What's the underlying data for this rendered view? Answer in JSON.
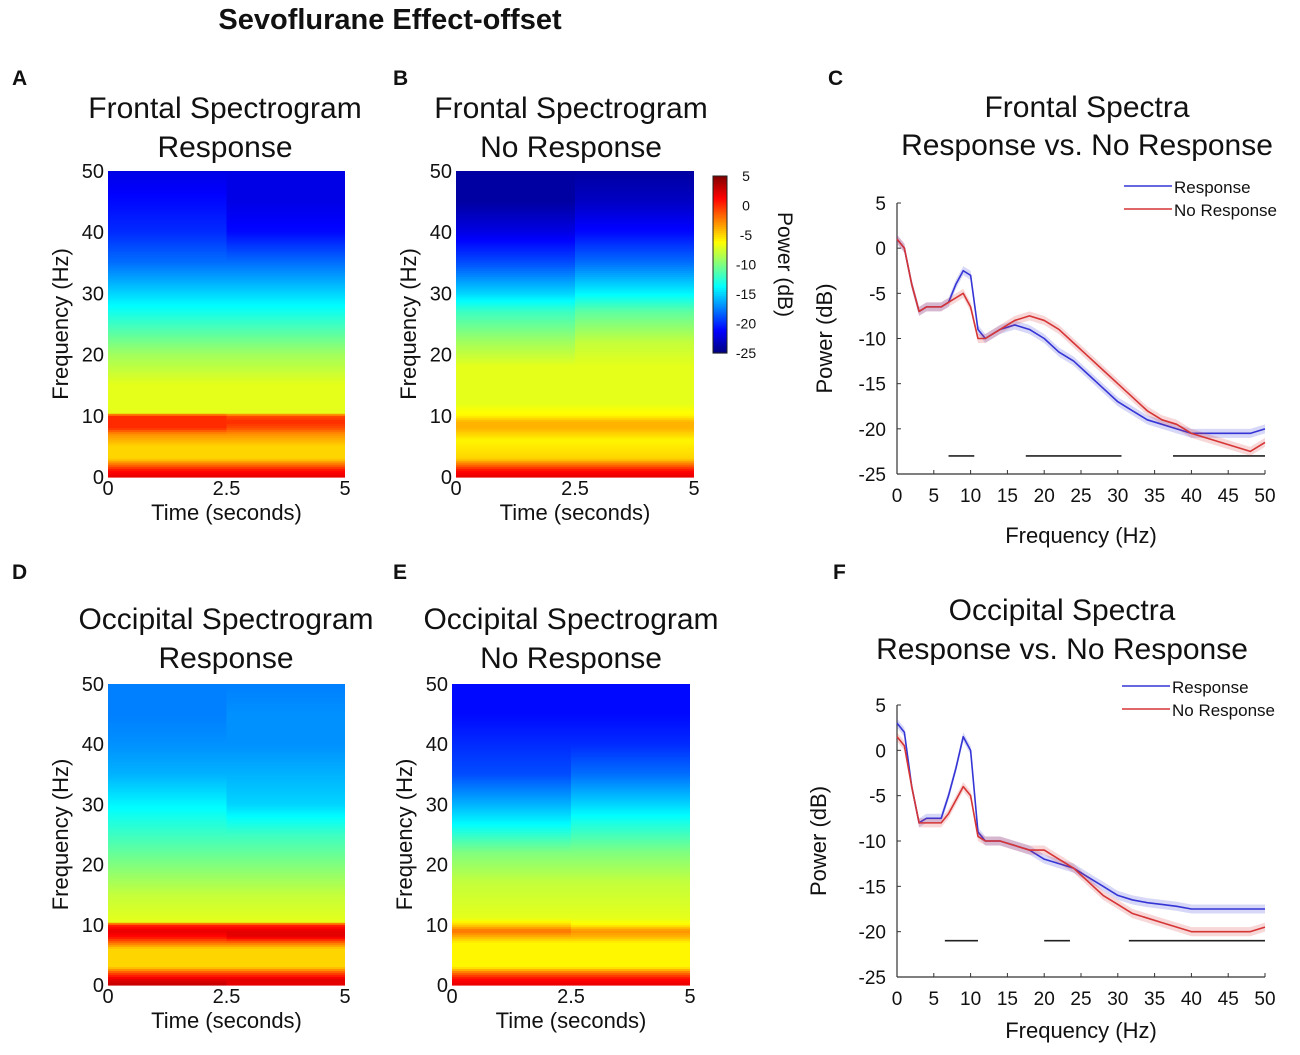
{
  "figure_title": "Sevoflurane Effect-offset",
  "colorbar": {
    "ticks": [
      "5",
      "0",
      "-5",
      "-10",
      "-15",
      "-20",
      "-25"
    ],
    "label": "Power (dB)",
    "range": [
      -25,
      5
    ]
  },
  "chart_data": [
    {
      "id": "A",
      "type": "heatmap",
      "title": [
        "Frontal Spectrogram",
        "Response"
      ],
      "xlabel": "Time (seconds)",
      "ylabel": "Frequency (Hz)",
      "xticks": [
        "0",
        "2.5",
        "5"
      ],
      "yticks": [
        "0",
        "10",
        "20",
        "30",
        "40",
        "50"
      ],
      "xlim": [
        0,
        5
      ],
      "ylim": [
        0,
        50
      ],
      "split_time": 2.5,
      "power_db_by_freq": [
        [
          0,
          2,
          2
        ],
        [
          1,
          1,
          1
        ],
        [
          2,
          -2,
          -2
        ],
        [
          3,
          -5,
          -5
        ],
        [
          5,
          -5,
          -5
        ],
        [
          7,
          -3,
          -3
        ],
        [
          8,
          0,
          -1
        ],
        [
          9,
          0,
          0
        ],
        [
          10,
          0,
          -1
        ],
        [
          10.5,
          -7,
          -7
        ],
        [
          15,
          -7,
          -7
        ],
        [
          20,
          -9,
          -9
        ],
        [
          25,
          -12,
          -12
        ],
        [
          30,
          -15,
          -15
        ],
        [
          35,
          -18,
          -18
        ],
        [
          40,
          -20,
          -21
        ],
        [
          45,
          -21,
          -22
        ],
        [
          50,
          -22,
          -22
        ]
      ]
    },
    {
      "id": "B",
      "type": "heatmap",
      "title": [
        "Frontal Spectrogram",
        "No Response"
      ],
      "xlabel": "Time (seconds)",
      "ylabel": "Frequency (Hz)",
      "xticks": [
        "0",
        "2.5",
        "5"
      ],
      "yticks": [
        "0",
        "10",
        "20",
        "30",
        "40",
        "50"
      ],
      "xlim": [
        0,
        5
      ],
      "ylim": [
        0,
        50
      ],
      "split_time": 2.5,
      "power_db_by_freq": [
        [
          0,
          2,
          2
        ],
        [
          1,
          1,
          1
        ],
        [
          2,
          -2,
          -2
        ],
        [
          3,
          -5,
          -5
        ],
        [
          6,
          -6,
          -6
        ],
        [
          8,
          -4,
          -4
        ],
        [
          9,
          -4,
          -4
        ],
        [
          10,
          -6,
          -6
        ],
        [
          12,
          -7,
          -7
        ],
        [
          18,
          -7,
          -7
        ],
        [
          22,
          -9,
          -8
        ],
        [
          27,
          -12,
          -11
        ],
        [
          30,
          -15,
          -14
        ],
        [
          35,
          -19,
          -18
        ],
        [
          40,
          -22,
          -21
        ],
        [
          45,
          -24,
          -23
        ],
        [
          50,
          -24,
          -24
        ]
      ]
    },
    {
      "id": "C",
      "type": "line",
      "title": [
        "Frontal Spectra",
        "Response vs. No Response"
      ],
      "xlabel": "Frequency (Hz)",
      "ylabel": "Power (dB)",
      "xlim": [
        0,
        50
      ],
      "ylim": [
        -25,
        5
      ],
      "xticks": [
        "0",
        "5",
        "10",
        "15",
        "20",
        "25",
        "30",
        "35",
        "40",
        "45",
        "50"
      ],
      "yticks": [
        "5",
        "0",
        "-5",
        "-10",
        "-15",
        "-20",
        "-25"
      ],
      "legend": [
        "Response",
        "No Response"
      ],
      "x": [
        0,
        1,
        2,
        3,
        4,
        5,
        6,
        7,
        8,
        9,
        10,
        11,
        12,
        14,
        16,
        18,
        20,
        22,
        24,
        26,
        28,
        30,
        32,
        34,
        36,
        38,
        40,
        42,
        44,
        46,
        48,
        50
      ],
      "series": [
        {
          "name": "Response",
          "color": "#3535d6",
          "values": [
            1,
            0,
            -4,
            -7,
            -6.5,
            -6.5,
            -6.5,
            -6,
            -4,
            -2.5,
            -3,
            -9,
            -10,
            -9,
            -8.5,
            -9,
            -10,
            -11.5,
            -12.5,
            -14,
            -15.5,
            -17,
            -18,
            -19,
            -19.5,
            -20,
            -20.5,
            -20.5,
            -20.5,
            -20.5,
            -20.5,
            -20
          ]
        },
        {
          "name": "No Response",
          "color": "#d63535",
          "values": [
            1,
            0,
            -4,
            -7,
            -6.5,
            -6.5,
            -6.5,
            -6,
            -5.5,
            -5,
            -6.5,
            -10,
            -10,
            -9,
            -8,
            -7.5,
            -8,
            -9,
            -10.5,
            -12,
            -13.5,
            -15,
            -16.5,
            -18,
            -19,
            -19.5,
            -20.5,
            -21,
            -21.5,
            -22,
            -22.5,
            -21.5
          ]
        }
      ],
      "significance_bars": [
        [
          7,
          10.5
        ],
        [
          17.5,
          30.5
        ],
        [
          37.5,
          50
        ]
      ],
      "significance_level": -23
    },
    {
      "id": "D",
      "type": "heatmap",
      "title": [
        "Occipital Spectrogram",
        "Response"
      ],
      "xlabel": "Time (seconds)",
      "ylabel": "Frequency (Hz)",
      "xticks": [
        "0",
        "2.5",
        "5"
      ],
      "yticks": [
        "0",
        "10",
        "20",
        "30",
        "40",
        "50"
      ],
      "xlim": [
        0,
        5
      ],
      "ylim": [
        0,
        50
      ],
      "split_time": 2.5,
      "power_db_by_freq": [
        [
          0,
          3,
          2
        ],
        [
          1,
          2,
          2
        ],
        [
          2,
          -1,
          -1
        ],
        [
          3,
          -5,
          -5
        ],
        [
          6,
          -5,
          -5
        ],
        [
          7,
          -2,
          -2
        ],
        [
          8,
          1,
          2
        ],
        [
          9,
          2,
          2
        ],
        [
          10,
          0,
          0
        ],
        [
          10.5,
          -7,
          -7
        ],
        [
          15,
          -8,
          -8
        ],
        [
          20,
          -10,
          -10
        ],
        [
          25,
          -12,
          -12
        ],
        [
          30,
          -14,
          -15
        ],
        [
          35,
          -16,
          -16
        ],
        [
          40,
          -17,
          -17
        ],
        [
          45,
          -17.5,
          -17
        ],
        [
          50,
          -17.5,
          -17.5
        ]
      ]
    },
    {
      "id": "E",
      "type": "heatmap",
      "title": [
        "Occipital Spectrogram",
        "No Response"
      ],
      "xlabel": "Time (seconds)",
      "ylabel": "Frequency (Hz)",
      "xticks": [
        "0",
        "2.5",
        "5"
      ],
      "yticks": [
        "0",
        "10",
        "20",
        "30",
        "40",
        "50"
      ],
      "xlim": [
        0,
        5
      ],
      "ylim": [
        0,
        50
      ],
      "split_time": 2.5,
      "power_db_by_freq": [
        [
          0,
          2,
          2
        ],
        [
          1,
          1,
          1
        ],
        [
          2,
          -2,
          -2
        ],
        [
          3,
          -6,
          -6
        ],
        [
          7,
          -6,
          -6
        ],
        [
          8,
          -4,
          -4
        ],
        [
          9,
          -2,
          -3
        ],
        [
          10,
          -5,
          -6
        ],
        [
          11,
          -7,
          -7
        ],
        [
          17,
          -8,
          -8
        ],
        [
          22,
          -10,
          -10
        ],
        [
          27,
          -14,
          -13
        ],
        [
          30,
          -16,
          -15
        ],
        [
          35,
          -19,
          -18
        ],
        [
          40,
          -20,
          -20
        ],
        [
          45,
          -21,
          -21
        ],
        [
          50,
          -21,
          -21
        ]
      ]
    },
    {
      "id": "F",
      "type": "line",
      "title": [
        "Occipital Spectra",
        "Response vs. No Response"
      ],
      "xlabel": "Frequency (Hz)",
      "ylabel": "Power (dB)",
      "xlim": [
        0,
        50
      ],
      "ylim": [
        -25,
        5
      ],
      "xticks": [
        "0",
        "5",
        "10",
        "15",
        "20",
        "25",
        "30",
        "35",
        "40",
        "45",
        "50"
      ],
      "yticks": [
        "5",
        "0",
        "-5",
        "-10",
        "-15",
        "-20",
        "-25"
      ],
      "legend": [
        "Response",
        "No Response"
      ],
      "x": [
        0,
        1,
        2,
        3,
        4,
        5,
        6,
        7,
        8,
        9,
        10,
        11,
        12,
        14,
        16,
        18,
        20,
        22,
        24,
        26,
        28,
        30,
        32,
        34,
        36,
        38,
        40,
        42,
        44,
        46,
        48,
        50
      ],
      "series": [
        {
          "name": "Response",
          "color": "#3535d6",
          "values": [
            3,
            2,
            -4,
            -8,
            -7.5,
            -7.5,
            -7.5,
            -5,
            -2,
            1.5,
            0,
            -9,
            -10,
            -10,
            -10.5,
            -11,
            -12,
            -12.5,
            -13,
            -14,
            -15,
            -16,
            -16.5,
            -16.8,
            -17,
            -17.2,
            -17.5,
            -17.5,
            -17.5,
            -17.5,
            -17.5,
            -17.5
          ]
        },
        {
          "name": "No Response",
          "color": "#d63535",
          "values": [
            1.5,
            0.5,
            -4,
            -8,
            -8,
            -8,
            -8,
            -7,
            -5.5,
            -4,
            -5,
            -9.5,
            -10,
            -10,
            -10.5,
            -11,
            -11,
            -12,
            -13,
            -14.5,
            -16,
            -17,
            -18,
            -18.5,
            -19,
            -19.5,
            -20,
            -20,
            -20,
            -20,
            -20,
            -19.5
          ]
        }
      ],
      "significance_bars": [
        [
          6.5,
          11
        ],
        [
          20,
          23.5
        ],
        [
          31.5,
          50
        ]
      ],
      "significance_level": -21
    }
  ]
}
